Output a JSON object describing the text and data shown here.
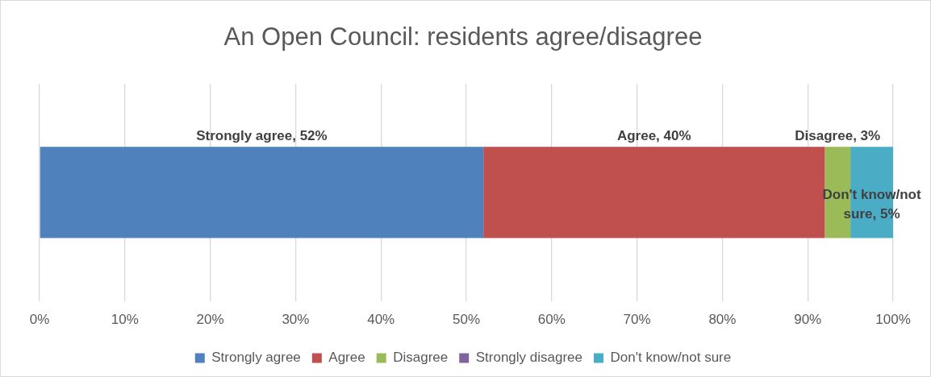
{
  "chart_data": {
    "type": "bar",
    "title": "An Open Council: residents agree/disagree",
    "orientation": "horizontal",
    "stacked": true,
    "categories": [
      null
    ],
    "series": [
      {
        "name": "Strongly agree",
        "color": "#4f81bd",
        "values": [
          52
        ],
        "value_labels": [
          "Strongly agree, 52%"
        ]
      },
      {
        "name": "Agree",
        "color": "#c0504d",
        "values": [
          40
        ],
        "value_labels": [
          "Agree, 40%"
        ]
      },
      {
        "name": "Disagree",
        "color": "#9bbb59",
        "values": [
          3
        ],
        "value_labels": [
          "Disagree, 3%"
        ]
      },
      {
        "name": "Strongly disagree",
        "color": "#8064a2",
        "values": [
          0
        ],
        "value_labels": [
          null
        ]
      },
      {
        "name": "Don't know/not sure",
        "color": "#4bacc6",
        "values": [
          5
        ],
        "value_labels": [
          "Don't know/not sure, 5%"
        ]
      }
    ],
    "xlim": [
      0,
      100
    ],
    "xticks": [
      {
        "value": 0,
        "label": "0%"
      },
      {
        "value": 10,
        "label": "10%"
      },
      {
        "value": 20,
        "label": "20%"
      },
      {
        "value": 30,
        "label": "30%"
      },
      {
        "value": 40,
        "label": "40%"
      },
      {
        "value": 50,
        "label": "50%"
      },
      {
        "value": 60,
        "label": "60%"
      },
      {
        "value": 70,
        "label": "70%"
      },
      {
        "value": 80,
        "label": "80%"
      },
      {
        "value": 90,
        "label": "90%"
      },
      {
        "value": 100,
        "label": "100%"
      }
    ],
    "grid": "x",
    "legend": "bottom",
    "tick_labels": "x"
  }
}
